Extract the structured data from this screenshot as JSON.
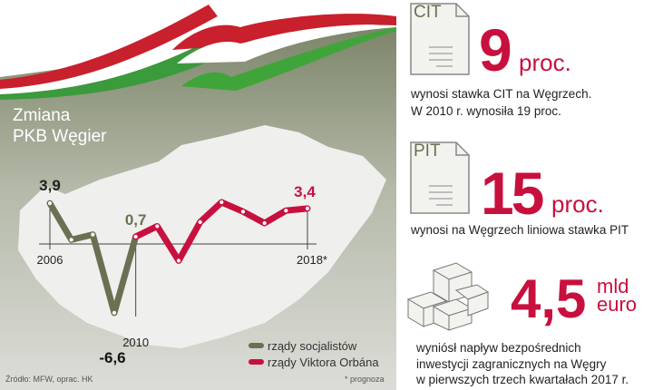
{
  "title_line1": "Zmiana",
  "title_line2": "PKB Węgier",
  "source": "Źródło: MFW, oprac. HK",
  "footnote": "* prognoza",
  "legend": [
    {
      "label": "rządy socjalistów",
      "color": "#6b7053"
    },
    {
      "label": "rządy Viktora Orbána",
      "color": "#c8103e"
    }
  ],
  "chart_data": {
    "type": "line",
    "x": [
      2006,
      2007,
      2008,
      2009,
      2010,
      2011,
      2012,
      2013,
      2014,
      2015,
      2016,
      2017,
      2018
    ],
    "series": [
      {
        "name": "rządy socjalistów",
        "color": "#6b7053",
        "x": [
          2006,
          2007,
          2008,
          2009,
          2010
        ],
        "values": [
          3.9,
          0.4,
          0.9,
          -6.6,
          0.7
        ]
      },
      {
        "name": "rządy Viktora Orbána",
        "color": "#c8103e",
        "x": [
          2010,
          2011,
          2012,
          2013,
          2014,
          2015,
          2016,
          2017,
          2018
        ],
        "values": [
          0.7,
          1.7,
          -1.6,
          2.1,
          4.0,
          3.1,
          2.0,
          3.2,
          3.4
        ]
      }
    ],
    "tick_labels": [
      "2006",
      "2010",
      "2018*"
    ],
    "data_labels": [
      {
        "x": 2006,
        "text": "3,9"
      },
      {
        "x": 2009,
        "text": "-6,6"
      },
      {
        "x": 2010,
        "text": "0,7"
      },
      {
        "x": 2018,
        "text": "3,4"
      }
    ],
    "baseline": 0,
    "grid": false
  },
  "cards": [
    {
      "doc_label": "CIT",
      "value": "9",
      "unit": "proc.",
      "desc": [
        "wynosi stawka CIT na Węgrzech.",
        "W 2010 r. wynosiła 19 proc."
      ]
    },
    {
      "doc_label": "PIT",
      "value": "15",
      "unit": "proc.",
      "desc": [
        "wynosi na Węgrzech liniowa stawka PIT"
      ]
    },
    {
      "value": "4,5",
      "unit_line1": "mld",
      "unit_line2": "euro",
      "desc": [
        "wyniósł napływ bezpośrednich",
        "inwestycji zagranicznych na Węgry",
        "w pierwszych trzech kwartałach 2017 r."
      ]
    }
  ]
}
